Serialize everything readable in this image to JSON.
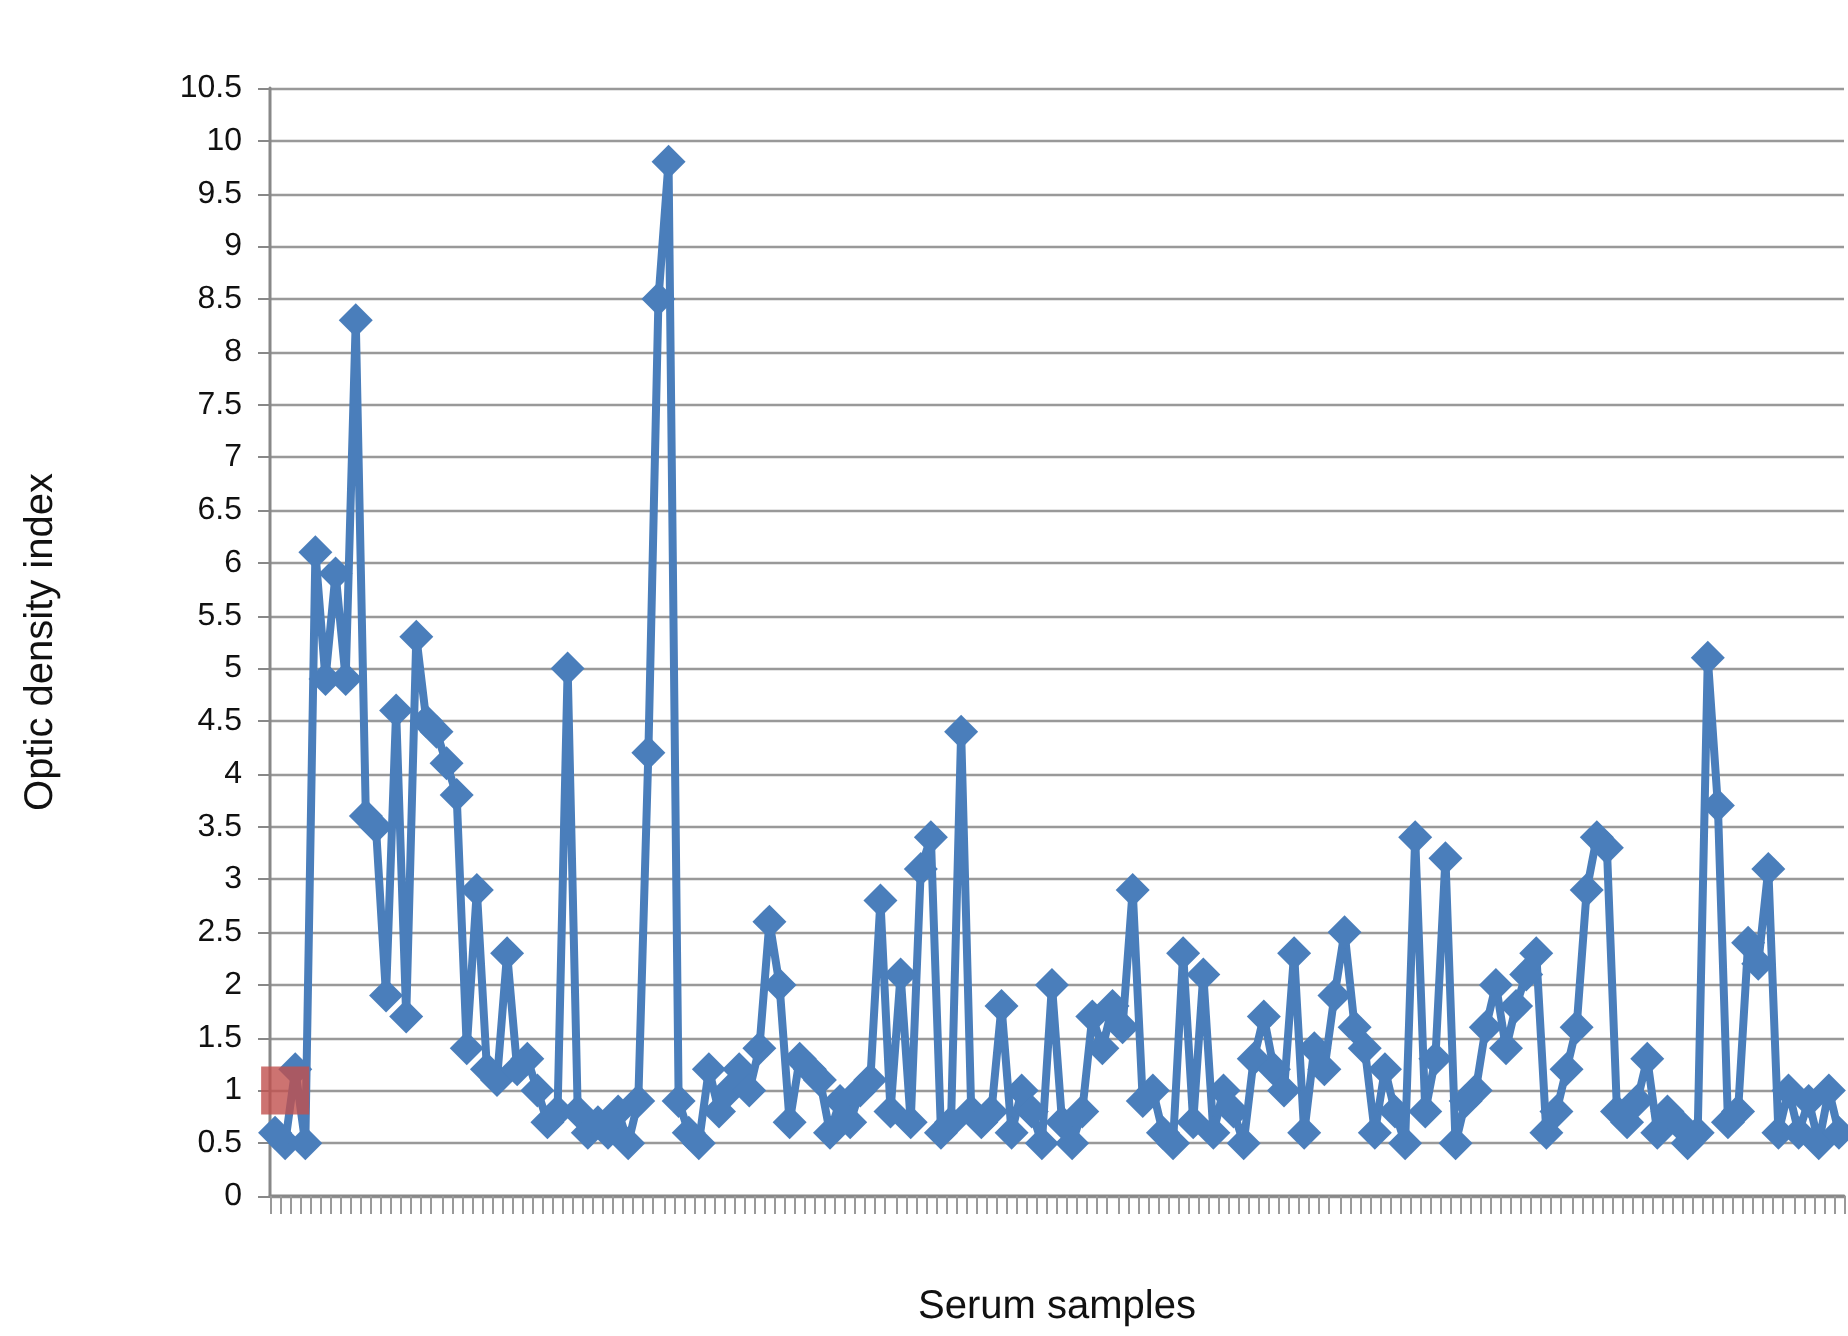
{
  "chart_data": {
    "type": "line",
    "xlabel": "Serum samples",
    "ylabel": "Optic density index",
    "categories": [
      null,
      null,
      null,
      null,
      null,
      null,
      null,
      null,
      null,
      null,
      null,
      null,
      null,
      null,
      null,
      null,
      null,
      null,
      null,
      null,
      null,
      null,
      null,
      null,
      null,
      null,
      null,
      null,
      null,
      null,
      null,
      null,
      null,
      null,
      null,
      null,
      null,
      null,
      null,
      null,
      null,
      null,
      null,
      null,
      null,
      null,
      null,
      null,
      null,
      null,
      null,
      null,
      null,
      null,
      null,
      null,
      null,
      null,
      null,
      null,
      null,
      null,
      null,
      null,
      null,
      null,
      null,
      null,
      null,
      null,
      null,
      null,
      null,
      null,
      null,
      null,
      null,
      null,
      null,
      null,
      null,
      null,
      null,
      null,
      null,
      null,
      null,
      null,
      null,
      null,
      null,
      null,
      null,
      null,
      null,
      null,
      null,
      null,
      null,
      null,
      null,
      null,
      null,
      null,
      null,
      null,
      null,
      null,
      null,
      null,
      null,
      null,
      null,
      null,
      null,
      null,
      null,
      null,
      null,
      null,
      null,
      null,
      null,
      null,
      null,
      null,
      null,
      null,
      null,
      null,
      null,
      null,
      null,
      null,
      null,
      null,
      null,
      null,
      null,
      null,
      null,
      null,
      null,
      null,
      null,
      null,
      null,
      null,
      null,
      null,
      null,
      null,
      null,
      null,
      null,
      null
    ],
    "series": [
      {
        "color": "#4a7ebb",
        "marker": "diamond",
        "values": [
          0.6,
          0.5,
          1.2,
          0.5,
          6.1,
          4.9,
          5.9,
          4.9,
          8.3,
          3.6,
          3.5,
          1.9,
          4.6,
          1.7,
          5.3,
          4.5,
          4.4,
          4.1,
          3.8,
          1.4,
          2.9,
          1.2,
          1.1,
          2.3,
          1.2,
          1.3,
          1.0,
          0.7,
          0.8,
          5.0,
          0.8,
          0.6,
          0.7,
          0.6,
          0.8,
          0.5,
          0.9,
          4.2,
          8.5,
          9.8,
          0.9,
          0.6,
          0.5,
          1.2,
          0.8,
          1.0,
          1.2,
          1.0,
          1.4,
          2.6,
          2.0,
          0.7,
          1.3,
          1.2,
          1.1,
          0.6,
          0.9,
          0.7,
          1.0,
          1.1,
          2.8,
          0.8,
          2.1,
          0.7,
          3.1,
          3.4,
          0.6,
          0.7,
          4.4,
          0.8,
          0.7,
          0.8,
          1.8,
          0.6,
          1.0,
          0.8,
          0.5,
          2.0,
          0.7,
          0.5,
          0.8,
          1.7,
          1.4,
          1.8,
          1.6,
          2.9,
          0.9,
          1.0,
          0.6,
          0.5,
          2.3,
          0.7,
          2.1,
          0.6,
          1.0,
          0.8,
          0.5,
          1.3,
          1.7,
          1.2,
          1.0,
          2.3,
          0.6,
          1.4,
          1.2,
          1.9,
          2.5,
          1.6,
          1.4,
          0.6,
          1.2,
          0.8,
          0.5,
          3.4,
          0.8,
          1.3,
          3.2,
          0.5,
          0.9,
          1.0,
          1.6,
          2.0,
          1.4,
          1.8,
          2.1,
          2.3,
          0.6,
          0.8,
          1.2,
          1.6,
          2.9,
          3.4,
          3.3,
          0.8,
          0.7,
          0.9,
          1.3,
          0.6,
          0.8,
          0.7,
          0.5,
          0.6,
          5.1,
          3.7,
          0.7,
          0.8,
          2.4,
          2.2,
          3.1,
          0.6,
          1.0,
          0.6,
          0.9,
          0.5,
          1.0,
          0.6
        ]
      },
      {
        "type": "scatter",
        "color": "#c0504d",
        "marker": "square",
        "values": [
          null,
          1.0,
          null,
          null,
          null,
          null,
          null,
          null,
          null,
          null,
          null,
          null,
          null,
          null,
          null,
          null,
          null,
          null,
          null,
          null,
          null,
          null,
          null,
          null,
          null,
          null,
          null,
          null,
          null,
          null,
          null,
          null,
          null,
          null,
          null,
          null,
          null,
          null,
          null,
          null,
          null,
          null,
          null,
          null,
          null,
          null,
          null,
          null,
          null,
          null,
          null,
          null,
          null,
          null,
          null,
          null,
          null,
          null,
          null,
          null,
          null,
          null,
          null,
          null,
          null,
          null,
          null,
          null,
          null,
          null,
          null,
          null,
          null,
          null,
          null,
          null,
          null,
          null,
          null,
          null,
          null,
          null,
          null,
          null,
          null,
          null,
          null,
          null,
          null,
          null,
          null,
          null,
          null,
          null,
          null,
          null,
          null,
          null,
          null,
          null,
          null,
          null,
          null,
          null,
          null,
          null,
          null,
          null,
          null,
          null,
          null,
          null,
          null,
          null,
          null,
          null,
          null,
          null,
          null,
          null,
          null,
          null,
          null,
          null,
          null,
          null,
          null,
          null,
          null,
          null,
          null,
          null,
          null,
          null,
          null,
          null,
          null,
          null,
          null,
          null,
          null,
          null,
          null,
          null,
          null,
          null,
          null,
          null,
          null,
          null,
          null,
          null,
          null,
          null,
          null,
          null
        ]
      }
    ],
    "ylim": [
      0,
      10.5
    ],
    "yticks": [
      0,
      0.5,
      1,
      1.5,
      2,
      2.5,
      3,
      3.5,
      4,
      4.5,
      5,
      5.5,
      6,
      6.5,
      7,
      7.5,
      8,
      8.5,
      9,
      9.5,
      10,
      10.5
    ],
    "grid": "y",
    "tick_labels": "y"
  }
}
